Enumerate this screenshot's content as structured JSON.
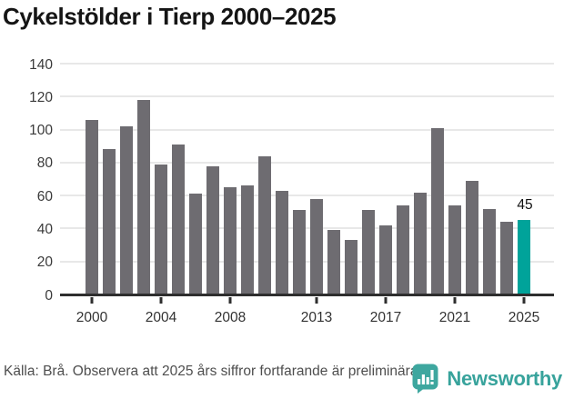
{
  "header": {
    "title": "Cykelstölder i Tierp 2000–2025"
  },
  "chart_data": {
    "type": "bar",
    "title": "Cykelstölder i Tierp 2000–2025",
    "categories": [
      2000,
      2001,
      2002,
      2003,
      2004,
      2005,
      2006,
      2007,
      2008,
      2009,
      2010,
      2011,
      2012,
      2013,
      2014,
      2015,
      2016,
      2017,
      2018,
      2019,
      2020,
      2021,
      2022,
      2023,
      2024,
      2025
    ],
    "values": [
      106,
      88,
      102,
      118,
      79,
      91,
      61,
      78,
      65,
      66,
      84,
      63,
      51,
      58,
      39,
      33,
      51,
      42,
      54,
      62,
      101,
      54,
      69,
      52,
      44,
      45
    ],
    "ylim": [
      0,
      140
    ],
    "yticks": [
      0,
      20,
      40,
      60,
      80,
      100,
      120,
      140
    ],
    "xticks": [
      {
        "index": 0,
        "label": "2000"
      },
      {
        "index": 4,
        "label": "2004"
      },
      {
        "index": 8,
        "label": "2008"
      },
      {
        "index": 13,
        "label": "2013"
      },
      {
        "index": 17,
        "label": "2017"
      },
      {
        "index": 21,
        "label": "2021"
      },
      {
        "index": 25,
        "label": "2025"
      }
    ],
    "highlight_index": 25,
    "annotation": {
      "index": 25,
      "label": "45"
    },
    "bar_color": "#6e6c71",
    "highlight_color": "#00a39a",
    "grid": true,
    "legend": false
  },
  "footer": {
    "source_note": "Källa: Brå. Observera att 2025 års siffror fortfarande är preliminära.",
    "brand": {
      "name": "Newsworthy",
      "logo_color": "#3EA79F",
      "text_color": "#38a39c"
    }
  }
}
